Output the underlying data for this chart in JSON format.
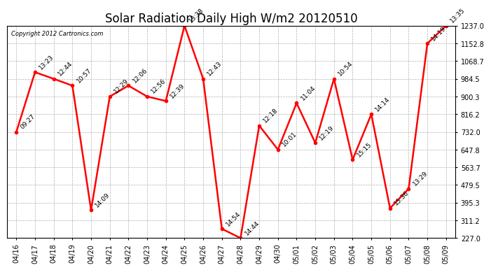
{
  "title": "Solar Radiation Daily High W/m2 20120510",
  "copyright": "Copyright 2012 Cartronics.com",
  "x_labels": [
    "04/16",
    "04/17",
    "04/18",
    "04/19",
    "04/20",
    "04/21",
    "04/22",
    "04/23",
    "04/24",
    "04/25",
    "04/26",
    "04/27",
    "04/28",
    "04/29",
    "04/30",
    "05/01",
    "05/02",
    "05/03",
    "05/04",
    "05/05",
    "05/06",
    "05/07",
    "05/08",
    "05/09"
  ],
  "y_values": [
    732.0,
    1016.0,
    984.5,
    952.0,
    360.0,
    900.3,
    952.0,
    900.3,
    879.0,
    1237.0,
    984.5,
    271.0,
    227.0,
    762.0,
    648.0,
    869.0,
    680.0,
    984.5,
    600.0,
    816.2,
    369.0,
    462.0,
    1152.8,
    1237.0
  ],
  "time_labels": [
    "09:27",
    "13:23",
    "12:44",
    "10:57",
    "14:09",
    "12:29",
    "12:06",
    "12:56",
    "12:39",
    "13:38",
    "12:43",
    "14:54",
    "14:44",
    "12:18",
    "10:01",
    "11:04",
    "12:19",
    "10:54",
    "15:15",
    "14:14",
    "15:36",
    "13:29",
    "14:19",
    "13:35"
  ],
  "line_color": "#ff0000",
  "marker_color": "#ff0000",
  "bg_color": "#ffffff",
  "plot_bg_color": "#ffffff",
  "grid_color": "#b0b0b0",
  "y_min": 227.0,
  "y_max": 1237.0,
  "y_ticks": [
    227.0,
    311.2,
    395.3,
    479.5,
    563.7,
    647.8,
    732.0,
    816.2,
    900.3,
    984.5,
    1068.7,
    1152.8,
    1237.0
  ],
  "title_fontsize": 12,
  "label_fontsize": 6.5,
  "tick_fontsize": 7,
  "marker_size": 3,
  "line_width": 1.8
}
